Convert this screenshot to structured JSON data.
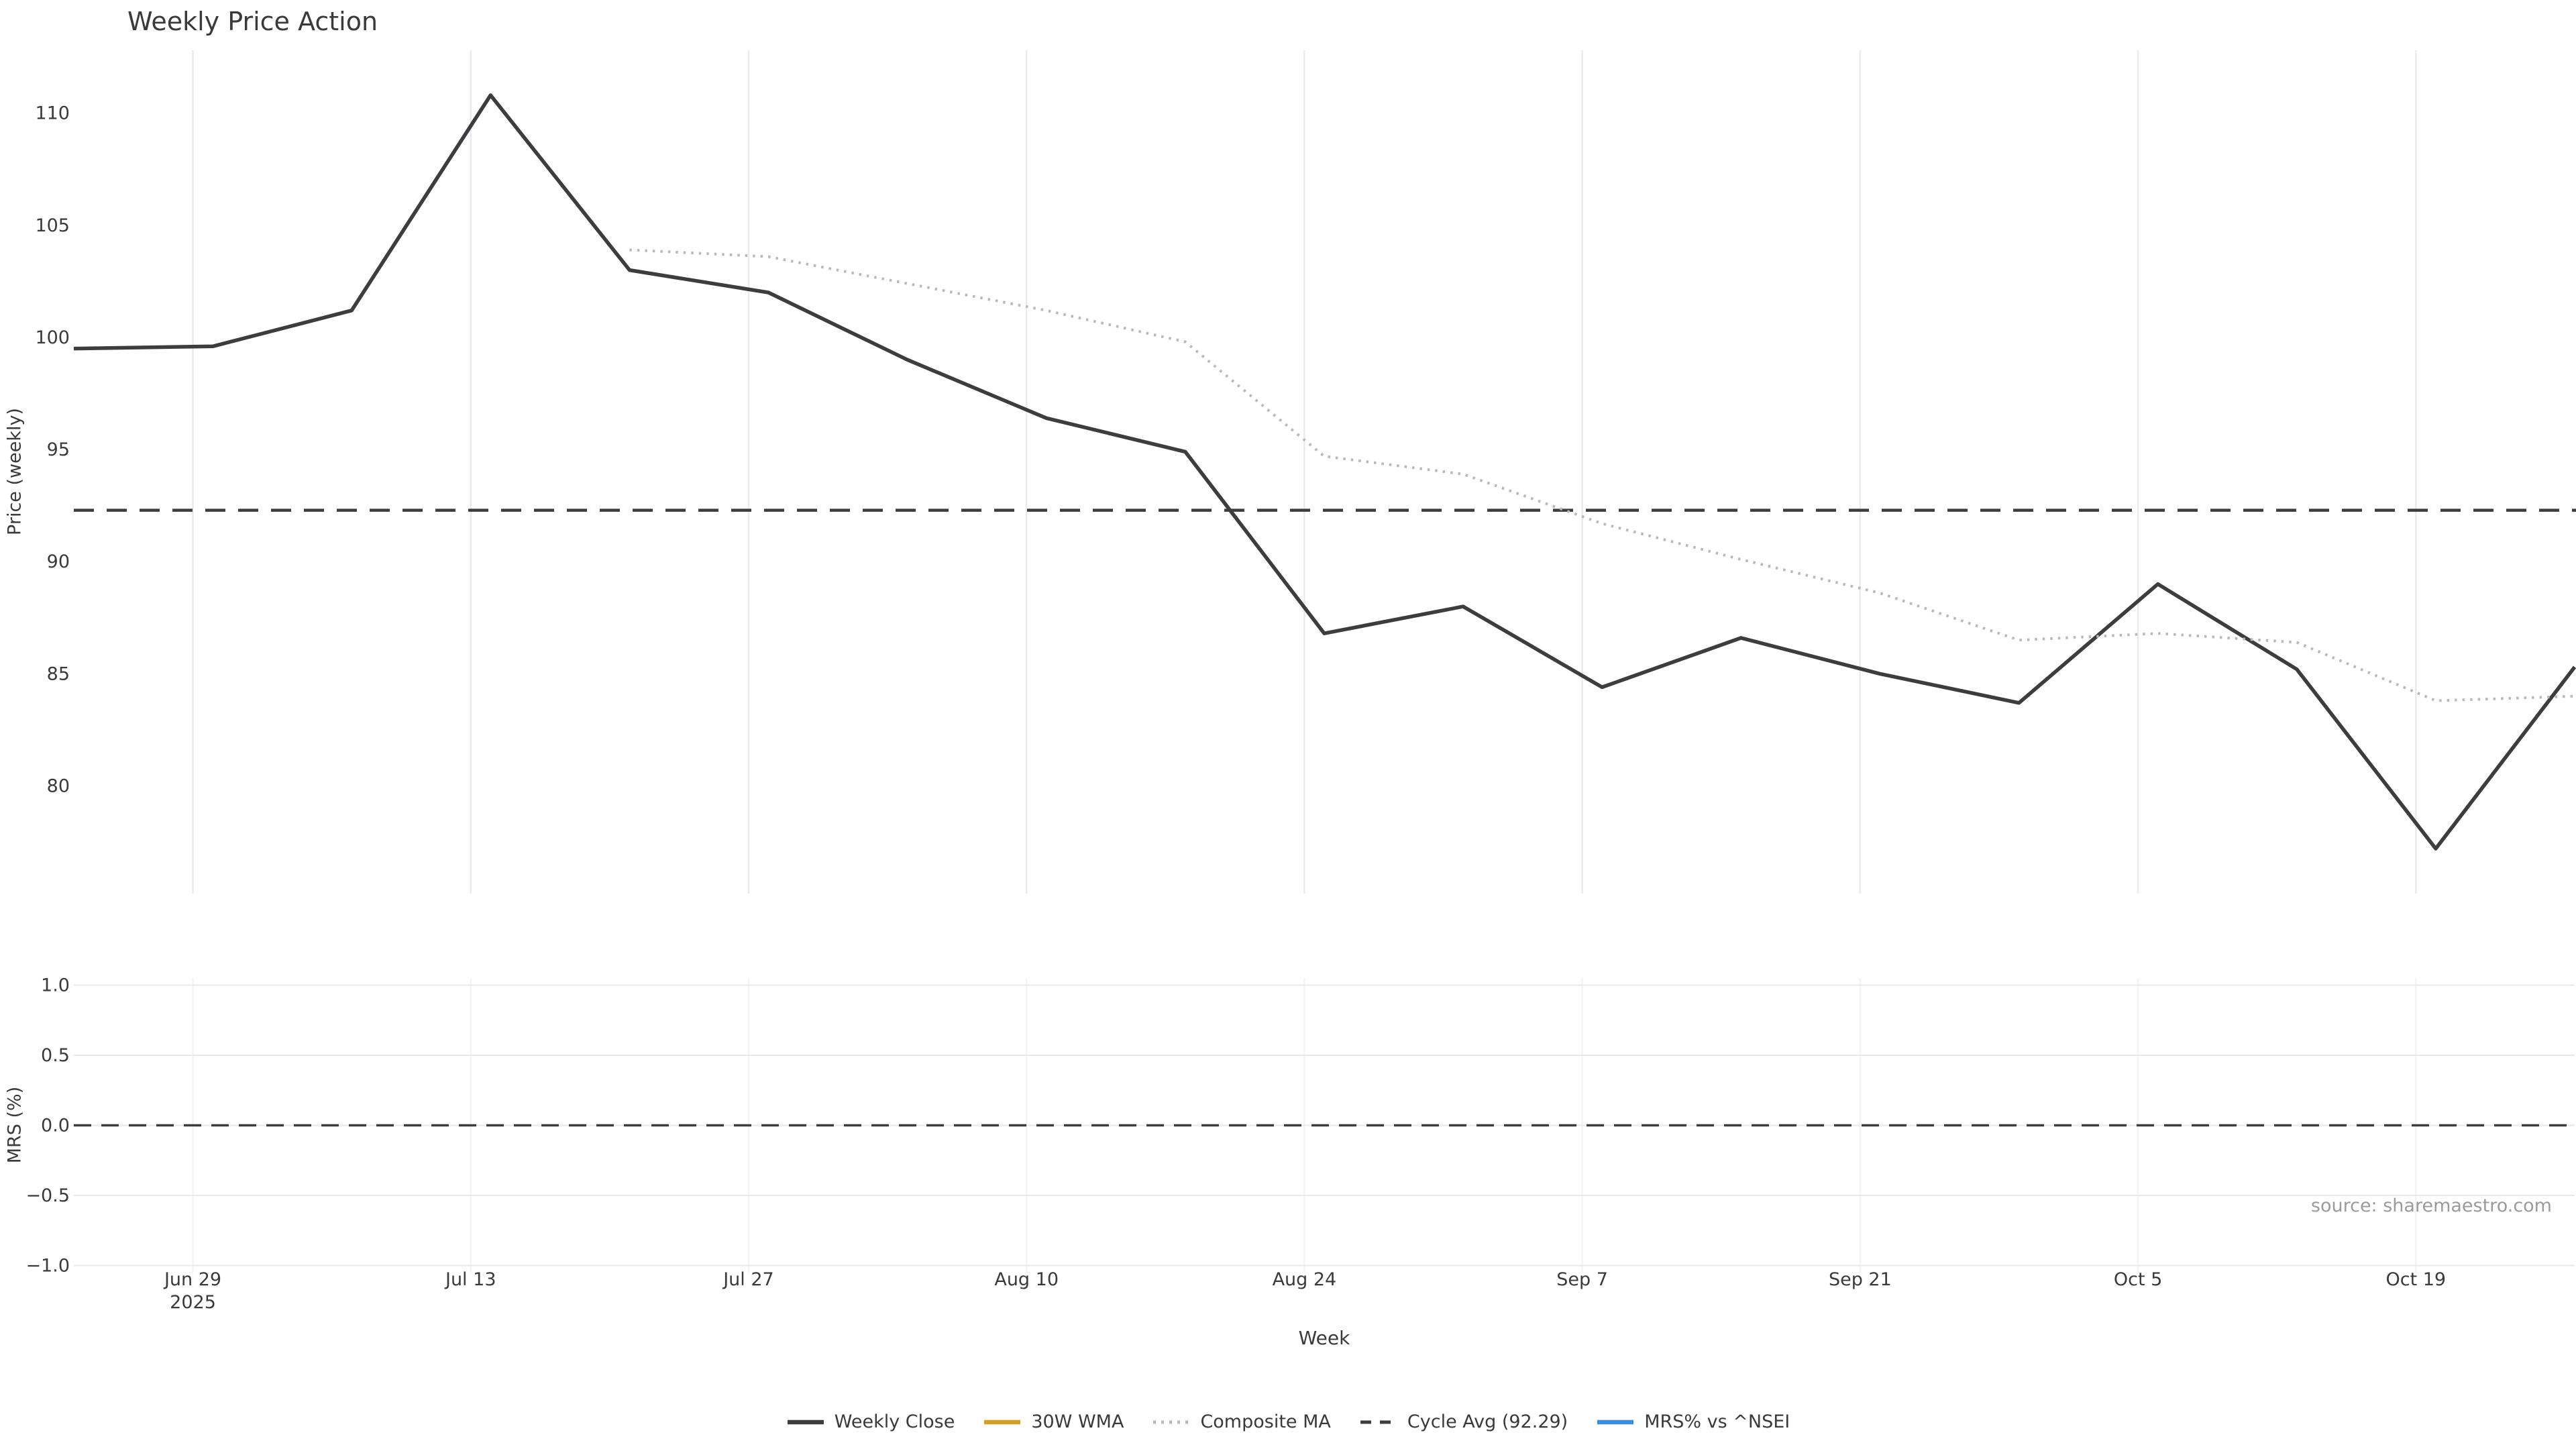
{
  "title": "Weekly Price Action",
  "source": "source: sharemaestro.com",
  "colors": {
    "weekly_close": "#3d3d3f",
    "wma_30w": "#d5a021",
    "composite_ma": "#b9b9b9",
    "cycle_avg": "#3d3d3f",
    "mrs_line": "#3a8dde",
    "tick_text": "#3a3a3a",
    "grid_vertical": "#e9ebee",
    "grid_horizontal": "#e9e9e9",
    "source_text": "#9b9b9b"
  },
  "chart_data": [
    {
      "type": "line",
      "panel": "price",
      "title": "Weekly Price Action",
      "xlabel": "Week",
      "ylabel": "Price (weekly)",
      "grid": "vertical-only",
      "x_weeks": [
        "Jun 23",
        "Jun 30",
        "Jul 7",
        "Jul 14",
        "Jul 21",
        "Jul 28",
        "Aug 4",
        "Aug 11",
        "Aug 18",
        "Aug 25",
        "Sep 1",
        "Sep 8",
        "Sep 15",
        "Sep 22",
        "Sep 29",
        "Oct 6",
        "Oct 13",
        "Oct 20",
        "Oct 27"
      ],
      "x_day_offsets": [
        0,
        7,
        14,
        21,
        28,
        35,
        42,
        49,
        56,
        63,
        70,
        77,
        84,
        91,
        98,
        105,
        112,
        119,
        126
      ],
      "series": [
        {
          "name": "Weekly Close",
          "style": "solid",
          "color": "#3d3d3f",
          "width": 5.5,
          "values": [
            99.5,
            99.6,
            101.2,
            110.8,
            103.0,
            102.0,
            99.0,
            96.4,
            94.9,
            86.8,
            88.0,
            84.4,
            86.6,
            85.0,
            83.7,
            89.0,
            85.2,
            77.2,
            85.3
          ]
        },
        {
          "name": "30W WMA",
          "style": "solid",
          "color": "#d5a021",
          "width": 5.5,
          "values": [
            null,
            null,
            null,
            null,
            null,
            null,
            null,
            null,
            null,
            null,
            null,
            null,
            null,
            null,
            null,
            null,
            null,
            null,
            null
          ]
        },
        {
          "name": "Composite MA",
          "style": "dotted",
          "color": "#b9b9b9",
          "width": 4,
          "values": [
            null,
            null,
            null,
            null,
            103.9,
            103.6,
            102.4,
            101.2,
            99.8,
            94.7,
            93.9,
            91.7,
            90.1,
            88.6,
            86.5,
            86.8,
            86.4,
            83.8,
            84.0
          ]
        }
      ],
      "reference_line": {
        "name": "Cycle Avg (92.29)",
        "value": 92.29,
        "style": "dashed",
        "color": "#3d3d3f"
      },
      "xticks": [
        {
          "label": "Jun 29",
          "sublabel": "2025",
          "day": 6
        },
        {
          "label": "Jul 13",
          "day": 20
        },
        {
          "label": "Jul 27",
          "day": 34
        },
        {
          "label": "Aug 10",
          "day": 48
        },
        {
          "label": "Aug 24",
          "day": 62
        },
        {
          "label": "Sep 7",
          "day": 76
        },
        {
          "label": "Sep 21",
          "day": 90
        },
        {
          "label": "Oct 5",
          "day": 104
        },
        {
          "label": "Oct 19",
          "day": 118
        }
      ],
      "yticks": [
        {
          "label": "80",
          "value": 80
        },
        {
          "label": "85",
          "value": 85
        },
        {
          "label": "90",
          "value": 90
        },
        {
          "label": "95",
          "value": 95
        },
        {
          "label": "100",
          "value": 100
        },
        {
          "label": "105",
          "value": 105
        },
        {
          "label": "110",
          "value": 110
        }
      ],
      "ylim": [
        75.2,
        112.8
      ]
    },
    {
      "type": "line",
      "panel": "mrs",
      "ylabel": "MRS (%)",
      "grid": "both",
      "series": [
        {
          "name": "MRS% vs ^NSEI",
          "style": "solid",
          "color": "#3a8dde",
          "width": 5.5,
          "values": []
        }
      ],
      "reference_line": {
        "name": "zero",
        "value": 0.0,
        "style": "dashed",
        "color": "#3d3d3f"
      },
      "yticks": [
        {
          "label": "−1.0",
          "value": -1.0
        },
        {
          "label": "−0.5",
          "value": -0.5
        },
        {
          "label": "0.0",
          "value": 0.0
        },
        {
          "label": "0.5",
          "value": 0.5
        },
        {
          "label": "1.0",
          "value": 1.0
        }
      ],
      "ylim": [
        -1.05,
        1.05
      ]
    }
  ],
  "legend": [
    {
      "label": "Weekly Close",
      "style": "solid",
      "color": "#3d3d3f"
    },
    {
      "label": "30W WMA",
      "style": "solid",
      "color": "#d5a021"
    },
    {
      "label": "Composite MA",
      "style": "dotted",
      "color": "#b9b9b9"
    },
    {
      "label": "Cycle Avg (92.29)",
      "style": "dashed",
      "color": "#3d3d3f"
    },
    {
      "label": "MRS% vs ^NSEI",
      "style": "solid",
      "color": "#3a8dde"
    }
  ]
}
